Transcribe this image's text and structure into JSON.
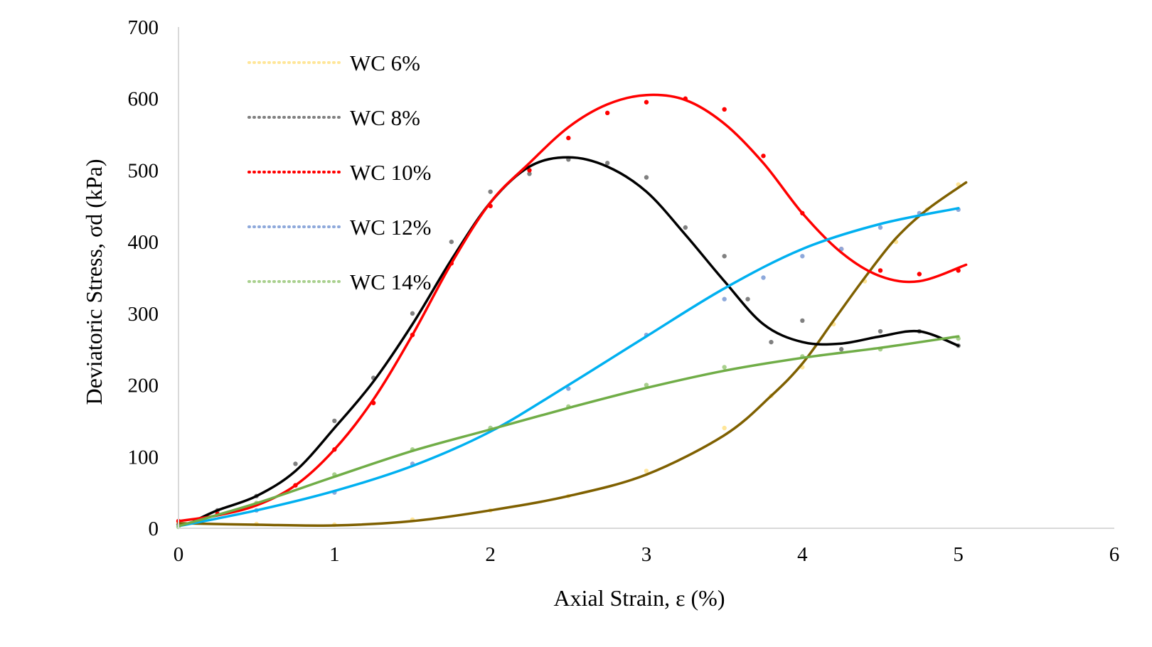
{
  "chart_data": {
    "type": "scatter",
    "title": "",
    "xlabel": "Axial Strain, ε (%)",
    "ylabel": "Deviatoric Stress, σd (kPa)",
    "xlim": [
      0,
      6
    ],
    "ylim": [
      0,
      700
    ],
    "xticks": [
      "0",
      "1",
      "2",
      "3",
      "4",
      "5",
      "6"
    ],
    "yticks": [
      "0",
      "100",
      "200",
      "300",
      "400",
      "500",
      "600",
      "700"
    ],
    "grid": false,
    "legend_position": "top-left",
    "series": [
      {
        "name": "WC 6%",
        "marker_color": "#FFE699",
        "trend_color": "#7F6000",
        "x": [
          0,
          0.5,
          1.0,
          1.5,
          2.0,
          2.5,
          3.0,
          3.5,
          3.8,
          4.0,
          4.2,
          4.4,
          4.6,
          4.8,
          5.0
        ],
        "y": [
          7,
          6,
          5,
          12,
          25,
          45,
          80,
          140,
          185,
          225,
          285,
          345,
          400,
          445,
          480
        ],
        "trend_x": [
          0,
          0.5,
          1.0,
          1.5,
          2.0,
          2.5,
          3.0,
          3.5,
          3.8,
          4.0,
          4.2,
          4.4,
          4.6,
          4.8,
          5.05
        ],
        "trend_y": [
          7,
          5,
          4,
          10,
          25,
          45,
          75,
          130,
          185,
          230,
          290,
          350,
          405,
          445,
          483
        ]
      },
      {
        "name": "WC 8%",
        "marker_color": "#808080",
        "trend_color": "#000000",
        "x": [
          0,
          0.25,
          0.5,
          0.75,
          1.0,
          1.25,
          1.5,
          1.75,
          2.0,
          2.25,
          2.5,
          2.75,
          3.0,
          3.25,
          3.5,
          3.65,
          3.8,
          4.0,
          4.25,
          4.5,
          4.75,
          5.0
        ],
        "y": [
          5,
          25,
          45,
          90,
          150,
          210,
          300,
          400,
          470,
          495,
          515,
          510,
          490,
          420,
          380,
          320,
          260,
          290,
          250,
          275,
          275,
          255
        ],
        "trend_x": [
          0.1,
          0.25,
          0.5,
          0.75,
          1.0,
          1.25,
          1.5,
          1.75,
          2.0,
          2.25,
          2.5,
          2.75,
          3.0,
          3.25,
          3.5,
          3.75,
          4.0,
          4.25,
          4.5,
          4.75,
          5.0
        ],
        "trend_y": [
          10,
          25,
          45,
          80,
          140,
          205,
          285,
          375,
          455,
          505,
          518,
          505,
          470,
          410,
          345,
          285,
          260,
          258,
          268,
          275,
          255
        ]
      },
      {
        "name": "WC 10%",
        "marker_color": "#FF0000",
        "trend_color": "#FF0000",
        "x": [
          0,
          0.25,
          0.5,
          0.75,
          1.0,
          1.25,
          1.5,
          1.75,
          2.0,
          2.25,
          2.5,
          2.75,
          3.0,
          3.25,
          3.5,
          3.75,
          4.0,
          4.25,
          4.5,
          4.75,
          5.0
        ],
        "y": [
          10,
          20,
          35,
          60,
          110,
          175,
          270,
          370,
          450,
          500,
          545,
          580,
          595,
          600,
          585,
          520,
          440,
          390,
          360,
          355,
          360
        ],
        "trend_x": [
          0,
          0.25,
          0.5,
          0.75,
          1.0,
          1.25,
          1.5,
          1.75,
          2.0,
          2.25,
          2.5,
          2.75,
          3.0,
          3.25,
          3.5,
          3.75,
          4.0,
          4.25,
          4.5,
          4.75,
          5.05
        ],
        "trend_y": [
          10,
          18,
          32,
          60,
          110,
          180,
          270,
          370,
          455,
          510,
          560,
          592,
          605,
          598,
          565,
          510,
          440,
          385,
          352,
          345,
          368
        ]
      },
      {
        "name": "WC 12%",
        "marker_color": "#8EA9DB",
        "trend_color": "#00B0F0",
        "x": [
          0,
          0.5,
          1.0,
          1.5,
          2.0,
          2.5,
          3.0,
          3.5,
          3.75,
          4.0,
          4.25,
          4.5,
          4.75,
          5.0
        ],
        "y": [
          2,
          25,
          50,
          90,
          140,
          195,
          270,
          320,
          350,
          380,
          390,
          420,
          440,
          445
        ],
        "trend_x": [
          0,
          0.5,
          1.0,
          1.5,
          2.0,
          2.5,
          3.0,
          3.5,
          4.0,
          4.5,
          5.0
        ],
        "trend_y": [
          3,
          25,
          52,
          87,
          135,
          200,
          268,
          335,
          390,
          425,
          447
        ]
      },
      {
        "name": "WC 14%",
        "marker_color": "#A9D08E",
        "trend_color": "#70AD47",
        "x": [
          0,
          0.5,
          1.0,
          1.5,
          2.0,
          2.5,
          3.0,
          3.5,
          4.0,
          4.5,
          5.0
        ],
        "y": [
          2,
          35,
          75,
          110,
          140,
          170,
          200,
          225,
          240,
          250,
          265
        ],
        "trend_x": [
          0,
          0.5,
          1.0,
          1.5,
          2.0,
          2.5,
          3.0,
          3.5,
          4.0,
          4.5,
          5.0
        ],
        "trend_y": [
          3,
          35,
          72,
          108,
          138,
          168,
          196,
          220,
          238,
          252,
          268
        ]
      }
    ]
  }
}
